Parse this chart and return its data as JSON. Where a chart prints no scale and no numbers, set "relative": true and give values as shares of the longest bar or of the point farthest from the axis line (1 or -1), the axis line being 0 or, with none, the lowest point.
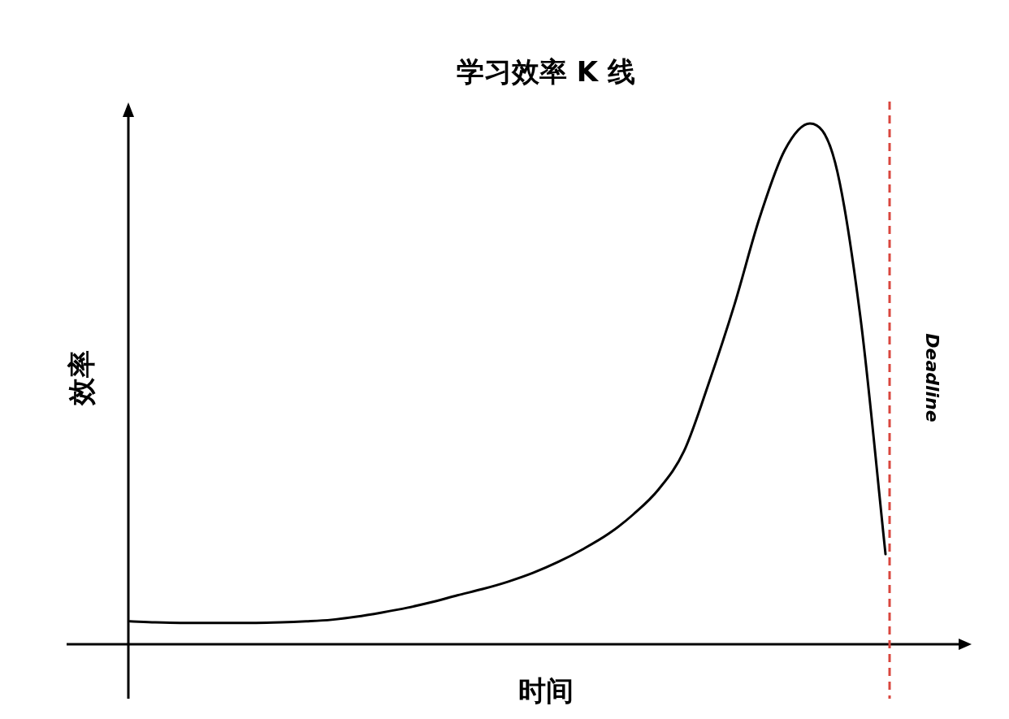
{
  "chart_data": {
    "type": "line",
    "title": "学习效率 K 线",
    "xlabel": "时间",
    "ylabel": "效率",
    "relative": true,
    "categories": [
      null,
      null,
      null,
      null,
      null,
      null,
      null,
      null,
      null,
      null,
      null,
      null,
      null,
      null,
      null,
      null,
      null,
      null,
      null,
      null,
      null,
      null,
      null,
      null,
      null,
      null,
      null,
      null,
      null,
      null,
      null
    ],
    "series": [
      {
        "color": "#000000",
        "values": [
          0.044,
          0.042,
          0.041,
          0.041,
          0.041,
          0.041,
          0.042,
          0.044,
          0.047,
          0.053,
          0.061,
          0.07,
          0.081,
          0.094,
          0.106,
          0.12,
          0.137,
          0.158,
          0.183,
          0.212,
          0.25,
          0.298,
          0.371,
          0.504,
          0.652,
          0.819,
          0.949,
          1,
          0.925,
          0.629,
          0.173
        ]
      }
    ],
    "annotations": [
      "Deadline"
    ]
  }
}
